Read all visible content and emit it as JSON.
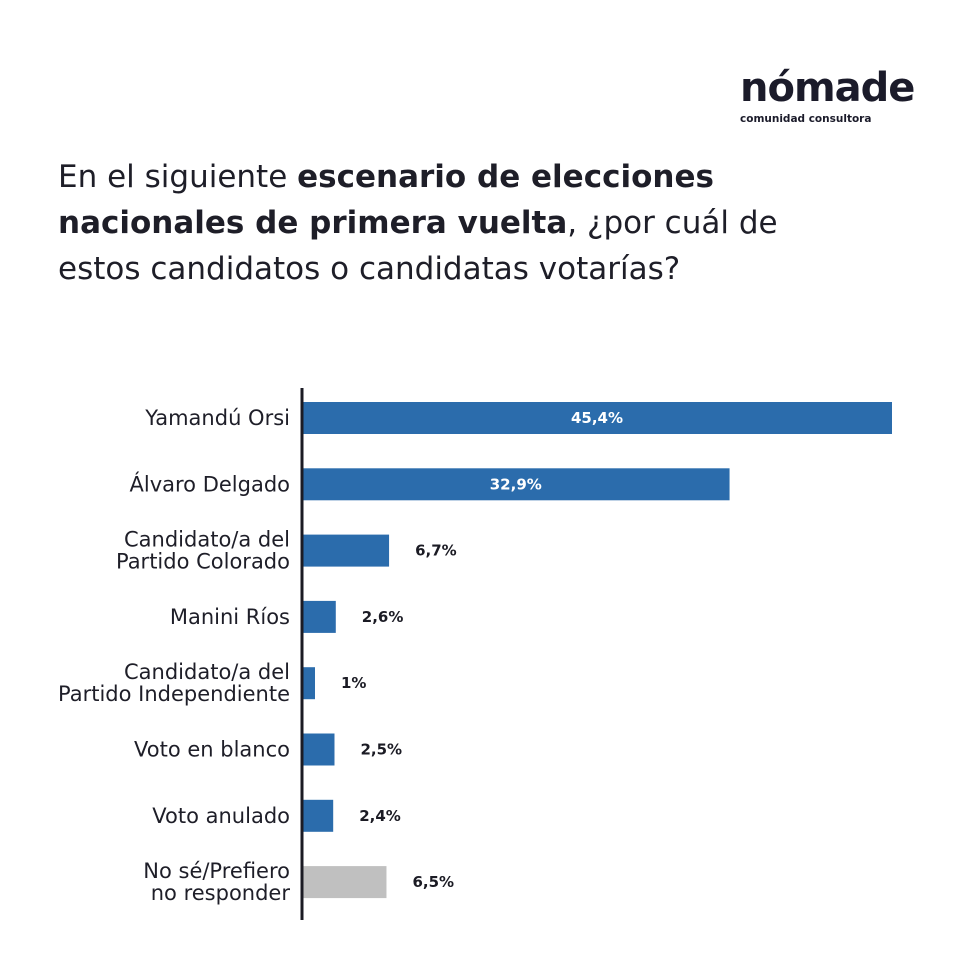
{
  "logo": {
    "name": "nómade",
    "tagline": "comunidad consultora"
  },
  "question": {
    "part1": "En el siguiente ",
    "bold": "escenario de elecciones nacionales de primera vuelta",
    "part2": ", ¿por cuál de estos candidatos o candidatas votarías?"
  },
  "colors": {
    "bar": "#2b6cac",
    "bar_neutral": "#c0c0c0",
    "axis": "#1b1b24",
    "label_inside": "#ffffff",
    "label_outside": "#1b1b24"
  },
  "chart_data": {
    "type": "bar",
    "orientation": "horizontal",
    "categories": [
      [
        "Yamandú Orsi"
      ],
      [
        "Álvaro Delgado"
      ],
      [
        "Candidato/a del",
        "Partido Colorado"
      ],
      [
        "Manini Ríos"
      ],
      [
        "Candidato/a del",
        "Partido Independiente"
      ],
      [
        "Voto en blanco"
      ],
      [
        "Voto anulado"
      ],
      [
        "No sé/Prefiero",
        "no responder"
      ]
    ],
    "values": [
      45.4,
      32.9,
      6.7,
      2.6,
      1,
      2.5,
      2.4,
      6.5
    ],
    "value_labels": [
      "45,4%",
      "32,9%",
      "6,7%",
      "2,6%",
      "1%",
      "2,5%",
      "2,4%",
      "6,5%"
    ],
    "label_inside": [
      true,
      true,
      false,
      false,
      false,
      false,
      false,
      false
    ],
    "neutral": [
      false,
      false,
      false,
      false,
      false,
      false,
      false,
      true
    ],
    "xlim": [
      0,
      45.4
    ],
    "grid": false,
    "legend": "none"
  }
}
